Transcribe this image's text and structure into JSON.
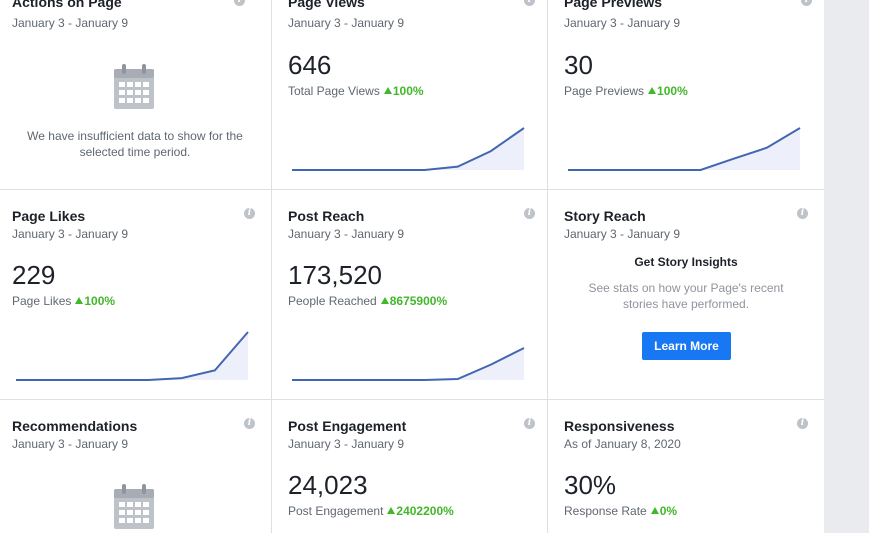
{
  "cards": {
    "actions_on_page": {
      "title": "Actions on Page",
      "date_range": "January 3 - January 9",
      "empty_message_line1": "We have insufficient data to show for the",
      "empty_message_line2": "selected time period."
    },
    "page_views": {
      "title": "Page Views",
      "date_range": "January 3 - January 9",
      "value": "646",
      "label": "Total Page Views",
      "delta": "100%",
      "trend": [
        0,
        0,
        0,
        0,
        0,
        0.08,
        0.45,
        1
      ]
    },
    "page_previews": {
      "title": "Page Previews",
      "date_range": "January 3 - January 9",
      "value": "30",
      "label": "Page Previews",
      "delta": "100%",
      "trend": [
        0,
        0,
        0,
        0,
        0,
        0.27,
        0.53,
        1
      ]
    },
    "page_likes": {
      "title": "Page Likes",
      "date_range": "January 3 - January 9",
      "value": "229",
      "label": "Page Likes",
      "delta": "100%",
      "trend": [
        0,
        0,
        0,
        0,
        0,
        0.04,
        0.2,
        1
      ]
    },
    "post_reach": {
      "title": "Post Reach",
      "date_range": "January 3 - January 9",
      "value": "173,520",
      "label": "People Reached",
      "delta": "8675900%",
      "trend": [
        0,
        0,
        0,
        0,
        0,
        0.03,
        0.48,
        1
      ]
    },
    "story_reach": {
      "title": "Story Reach",
      "date_range": "January 3 - January 9",
      "heading": "Get Story Insights",
      "body_line1": "See stats on how your Page's recent",
      "body_line2": "stories have performed.",
      "button_label": "Learn More"
    },
    "recommendations": {
      "title": "Recommendations",
      "date_range": "January 3 - January 9"
    },
    "post_engagement": {
      "title": "Post Engagement",
      "date_range": "January 3 - January 9",
      "value": "24,023",
      "label": "Post Engagement",
      "delta": "2402200%"
    },
    "responsiveness": {
      "title": "Responsiveness",
      "date_range": "As of January 8, 2020",
      "value": "30%",
      "label": "Response Rate",
      "delta": "0%"
    }
  },
  "icons": {
    "info": "i",
    "calendar": "calendar-icon",
    "trend_up": "triangle-up-icon"
  },
  "colors": {
    "line": "#4267b2",
    "fill": "#edf0fa",
    "positive": "#42b72a",
    "button": "#1877f2",
    "border": "#dddfe2",
    "gutter": "#e9ebee"
  }
}
